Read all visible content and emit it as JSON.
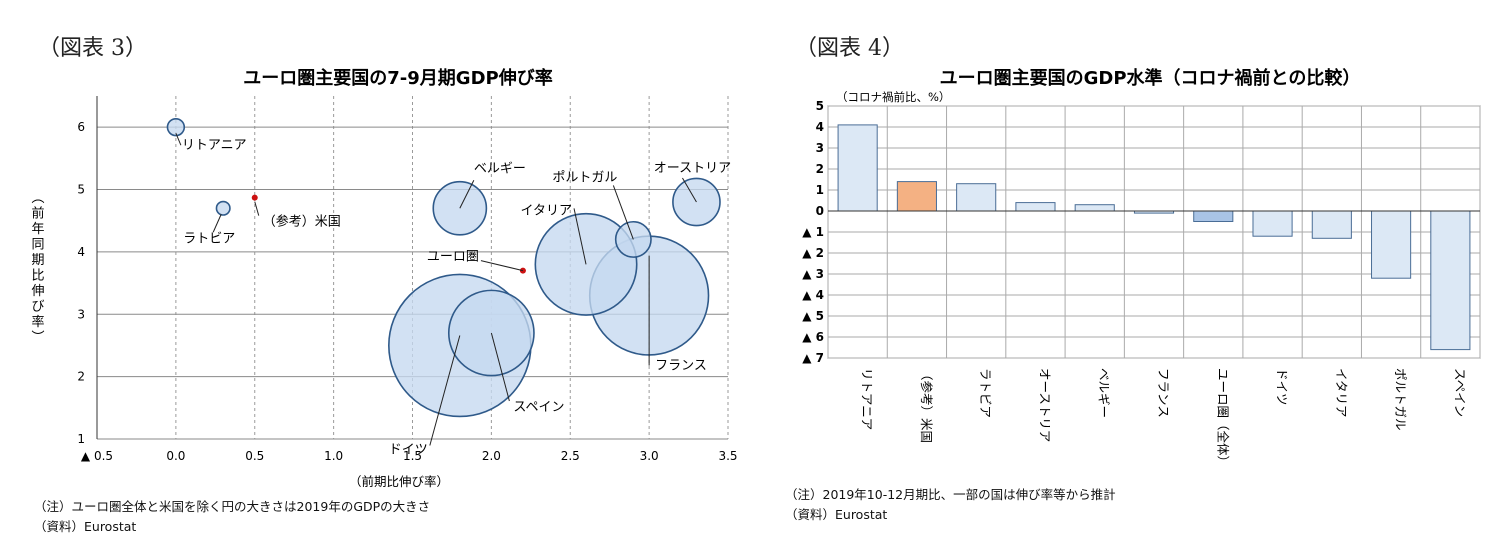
{
  "figure3": {
    "label": "（図表 3）",
    "note": "（注）ユーロ圏全体と米国を除く円の大きさは2019年のGDPの大きさ",
    "source": "（資料）Eurostat"
  },
  "figure4": {
    "label": "（図表 4）",
    "note": "（注）2019年10-12月期比、一部の国は伸び率等から推計",
    "source": "（資料）Eurostat"
  },
  "chart_data": [
    {
      "type": "scatter",
      "title": "ユーロ圏主要国の7-9月期GDP伸び率",
      "xlabel": "（前期比伸び率）",
      "ylabel": "（前年同期比伸び率）",
      "xlim": [
        -0.5,
        3.5
      ],
      "ylim": [
        1,
        6.5
      ],
      "x_ticks": [
        -0.5,
        0,
        0.5,
        1.0,
        1.5,
        2.0,
        2.5,
        3.0,
        3.5
      ],
      "x_tick_labels": [
        "▲ 0.5",
        "0.0",
        "0.5",
        "1.0",
        "1.5",
        "2.0",
        "2.5",
        "3.0",
        "3.5"
      ],
      "y_ticks": [
        1,
        2,
        3,
        4,
        5,
        6
      ],
      "y_tick_labels": [
        "1",
        "2",
        "3",
        "4",
        "5",
        "6"
      ],
      "grid": true,
      "colors": {
        "bubble_fill": "#c5d9ef",
        "bubble_stroke": "#2f5a8a",
        "point": "#cc1111"
      },
      "points": [
        {
          "name": "リトアニア",
          "x": 0.0,
          "y": 6.0,
          "kind": "bubble",
          "gdp_relative": 0.014
        },
        {
          "name": "ラトビア",
          "x": 0.3,
          "y": 4.7,
          "kind": "bubble",
          "gdp_relative": 0.009
        },
        {
          "name": "（参考）米国",
          "x": 0.5,
          "y": 4.87,
          "kind": "point"
        },
        {
          "name": "ベルギー",
          "x": 1.8,
          "y": 4.7,
          "kind": "bubble",
          "gdp_relative": 0.14
        },
        {
          "name": "ユーロ圏",
          "x": 2.2,
          "y": 3.7,
          "kind": "point"
        },
        {
          "name": "ドイツ",
          "x": 1.8,
          "y": 2.5,
          "kind": "bubble",
          "gdp_relative": 1.0
        },
        {
          "name": "スペイン",
          "x": 2.0,
          "y": 2.7,
          "kind": "bubble",
          "gdp_relative": 0.36
        },
        {
          "name": "イタリア",
          "x": 2.6,
          "y": 3.8,
          "kind": "bubble",
          "gdp_relative": 0.51
        },
        {
          "name": "ポルトガル",
          "x": 2.9,
          "y": 4.2,
          "kind": "bubble",
          "gdp_relative": 0.062
        },
        {
          "name": "フランス",
          "x": 3.0,
          "y": 3.3,
          "kind": "bubble",
          "gdp_relative": 0.7
        },
        {
          "name": "オーストリア",
          "x": 3.3,
          "y": 4.8,
          "kind": "bubble",
          "gdp_relative": 0.11
        }
      ]
    },
    {
      "type": "bar",
      "title": "ユーロ圏主要国のGDP水準（コロナ禍前との比較）",
      "ylabel": "（コロナ禍前比、%）",
      "ylim": [
        -7,
        5
      ],
      "y_ticks": [
        5,
        4,
        3,
        2,
        1,
        0,
        -1,
        -2,
        -3,
        -4,
        -5,
        -6,
        -7
      ],
      "y_tick_labels": [
        "5",
        "4",
        "3",
        "2",
        "1",
        "0",
        "▲ 1",
        "▲ 2",
        "▲ 3",
        "▲ 4",
        "▲ 5",
        "▲ 6",
        "▲ 7"
      ],
      "categories": [
        "リトアニア",
        "（参考）米国",
        "ラトビア",
        "オーストリア",
        "ベルギー",
        "フランス",
        "ユーロ圏（全体）",
        "ドイツ",
        "イタリア",
        "ポルトガル",
        "スペイン"
      ],
      "values": [
        4.1,
        1.4,
        1.3,
        0.4,
        0.3,
        -0.1,
        -0.5,
        -1.2,
        -1.3,
        -3.2,
        -6.6
      ],
      "bar_colors": [
        "#dce8f5",
        "#f4b183",
        "#dce8f5",
        "#dce8f5",
        "#dce8f5",
        "#dce8f5",
        "#a9c4e6",
        "#dce8f5",
        "#dce8f5",
        "#dce8f5",
        "#dce8f5"
      ],
      "bar_stroke": "#4a6d96",
      "grid": true
    }
  ]
}
